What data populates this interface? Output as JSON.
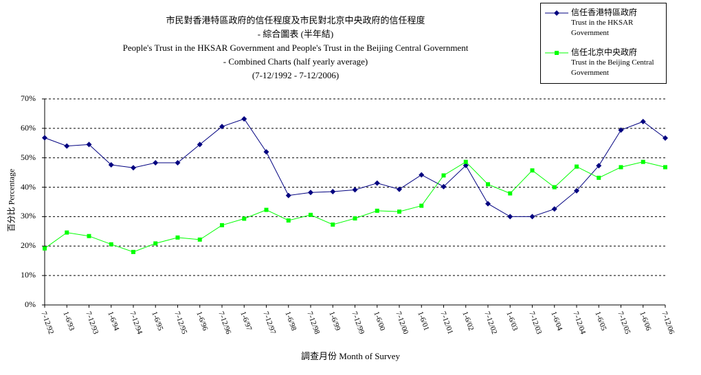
{
  "title_lines": [
    "市民對香港特區政府的信任程度及市民對北京中央政府的信任程度",
    "- 綜合圖表 (半年結)",
    "People's Trust in the HKSAR Government and People's Trust in the Beijing Central Government",
    "- Combined Charts (half yearly average)",
    "(7-12/1992 - 7-12/2006)"
  ],
  "legend": [
    {
      "zh": "信任香港特區政府",
      "en": "Trust in the HKSAR Government",
      "color": "#000080",
      "marker": "diamond"
    },
    {
      "zh": "信任北京中央政府",
      "en": "Trust in the Beijing Central Government",
      "color": "#00ff00",
      "marker": "square"
    }
  ],
  "chart_data": {
    "type": "line",
    "ylabel": "百分比 Percentage",
    "xlabel": "調查月份 Month of Survey",
    "ylim": [
      0,
      70
    ],
    "yticks": [
      "0%",
      "10%",
      "20%",
      "30%",
      "40%",
      "50%",
      "60%",
      "70%"
    ],
    "grid": true,
    "legend_position": "top-right",
    "categories": [
      "7-12/92",
      "1-6/93",
      "7-12/93",
      "1-6/94",
      "7-12/94",
      "1-6/95",
      "7-12/95",
      "1-6/96",
      "7-12/96",
      "1-6/97",
      "7-12/97",
      "1-6/98",
      "7-12/98",
      "1-6/99",
      "7-12/99",
      "1-6/00",
      "7-12/00",
      "1-6/01",
      "7-12/01",
      "1-6/02",
      "7-12/02",
      "1-6/03",
      "7-12/03",
      "1-6/04",
      "7-12/04",
      "1-6/05",
      "7-12/05",
      "1-6/06",
      "7-12/06"
    ],
    "series": [
      {
        "name": "信任香港特區政府 Trust in the HKSAR Government",
        "color": "#000080",
        "marker": "diamond",
        "values": [
          56.8,
          54.0,
          54.5,
          47.6,
          46.6,
          48.3,
          48.3,
          54.5,
          60.6,
          63.2,
          52.0,
          37.2,
          38.2,
          38.5,
          39.1,
          41.4,
          39.3,
          44.2,
          40.2,
          47.4,
          34.4,
          30.0,
          30.0,
          32.6,
          38.8,
          47.3,
          59.4,
          62.3,
          56.7
        ]
      },
      {
        "name": "信任北京中央政府 Trust in the Beijing Central Government",
        "color": "#00ff00",
        "marker": "square",
        "values": [
          19.2,
          24.6,
          23.4,
          20.6,
          18.0,
          20.9,
          22.9,
          22.2,
          27.1,
          29.3,
          32.3,
          28.7,
          30.6,
          27.3,
          29.4,
          32.0,
          31.7,
          33.7,
          44.0,
          48.6,
          41.0,
          37.9,
          45.7,
          40.0,
          47.0,
          43.2,
          46.8,
          48.6,
          46.8
        ]
      }
    ]
  }
}
